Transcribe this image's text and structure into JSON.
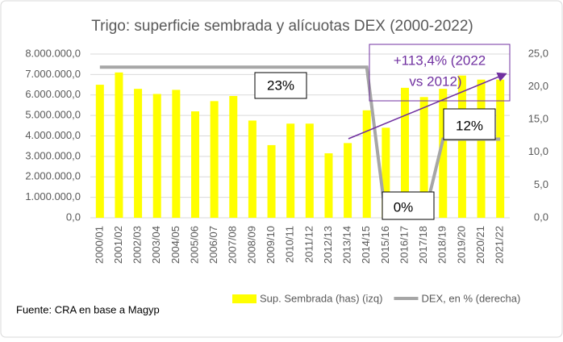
{
  "chart_data": {
    "type": "bar_line",
    "title": "Trigo: superficie sembrada y alícuotas DEX (2000-2022)",
    "categories": [
      "2000/01",
      "2001/02",
      "2002/03",
      "2003/04",
      "2004/05",
      "2005/06",
      "2006/07",
      "2007/08",
      "2008/09",
      "2009/10",
      "2010/11",
      "2011/12",
      "2012/13",
      "2013/14",
      "2014/15",
      "2015/16",
      "2016/17",
      "2017/18",
      "2018/19",
      "2019/20",
      "2020/21",
      "2021/22"
    ],
    "series": [
      {
        "name": "Sup. Sembrada (has) (izq)",
        "type": "bar",
        "color": "#ffff00",
        "values": [
          6500000,
          7100000,
          6300000,
          6050000,
          6250000,
          5200000,
          5700000,
          5950000,
          4750000,
          3550000,
          4600000,
          4600000,
          3150000,
          3650000,
          5250000,
          4400000,
          6350000,
          5900000,
          6300000,
          6950000,
          6750000,
          6750000
        ]
      },
      {
        "name": "DEX, en %  (derecha)",
        "type": "line",
        "axis": "y2",
        "color": "#a6a6a6",
        "values": [
          23,
          23,
          23,
          23,
          23,
          23,
          23,
          23,
          23,
          23,
          23,
          23,
          23,
          23,
          23,
          0,
          0,
          0,
          12,
          12,
          12,
          12
        ]
      }
    ],
    "ylim": [
      0,
      8000000
    ],
    "yticks": [
      {
        "value": 0,
        "label": "0,0"
      },
      {
        "value": 1000000,
        "label": "1.000.000,0"
      },
      {
        "value": 2000000,
        "label": "2.000.000,0"
      },
      {
        "value": 3000000,
        "label": "3.000.000,0"
      },
      {
        "value": 4000000,
        "label": "4.000.000,0"
      },
      {
        "value": 5000000,
        "label": "5.000.000,0"
      },
      {
        "value": 6000000,
        "label": "6.000.000,0"
      },
      {
        "value": 7000000,
        "label": "7.000.000,0"
      },
      {
        "value": 8000000,
        "label": "8.000.000,0"
      }
    ],
    "y2lim": [
      0,
      25
    ],
    "y2ticks": [
      {
        "value": 0,
        "label": "0,0"
      },
      {
        "value": 5,
        "label": "5,0"
      },
      {
        "value": 10,
        "label": "10,0"
      },
      {
        "value": 15,
        "label": "15,0"
      },
      {
        "value": 20,
        "label": "20,0"
      },
      {
        "value": 25,
        "label": "25,0"
      }
    ],
    "grid": true,
    "legend": "bottom",
    "annotations": [
      "23%",
      "0%",
      "12%",
      "+113,4%  (2022",
      "vs 2012)"
    ],
    "source": "Fuente: CRA en base a Magyp"
  }
}
